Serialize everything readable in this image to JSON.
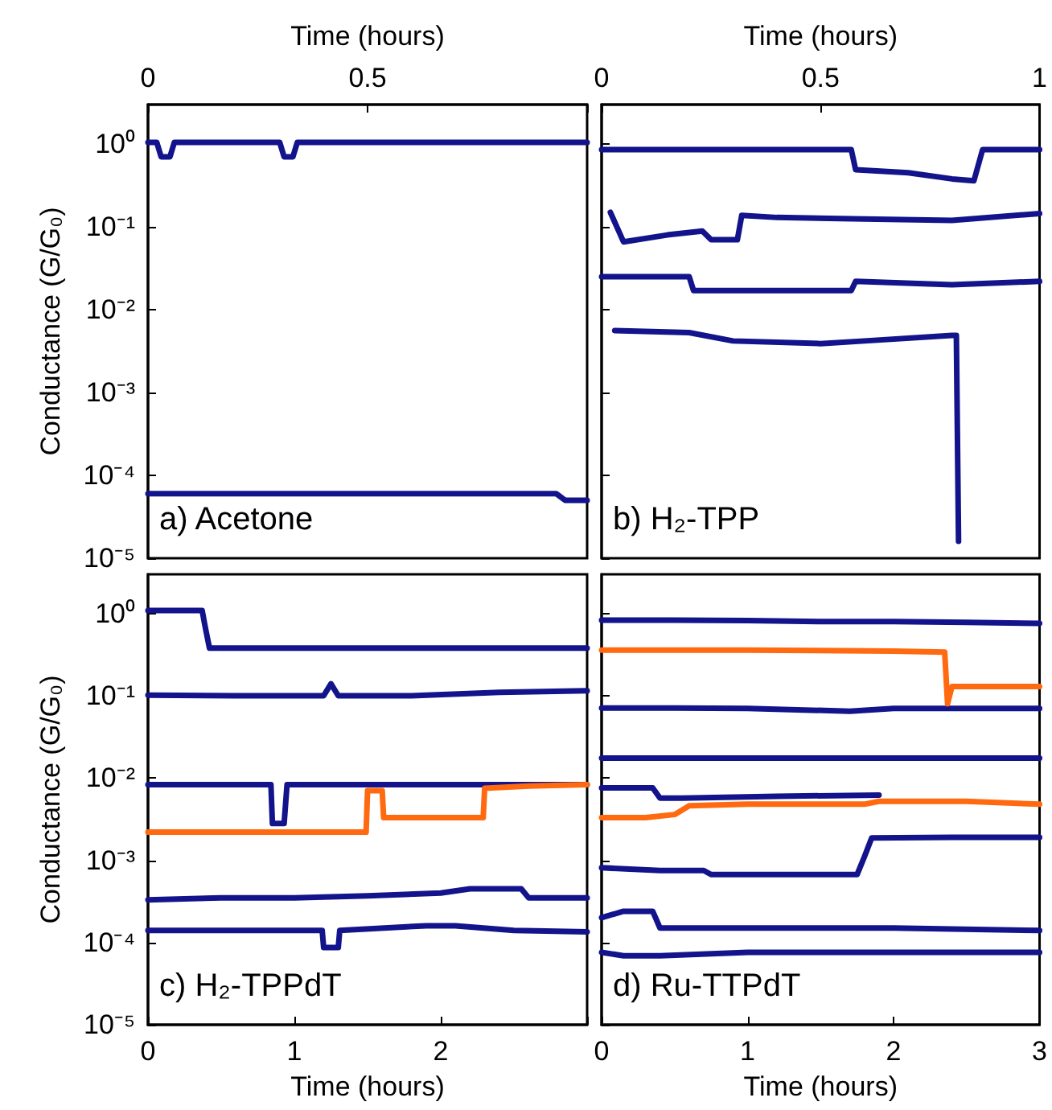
{
  "chart_data": [
    {
      "type": "line",
      "xlabel": "Time (hours)",
      "ylabel": "Conductance (G/G₀)",
      "xlim": [
        0,
        1
      ],
      "xticks": [
        0,
        0.5,
        {
          "value": 1,
          "label": null
        }
      ],
      "ylim": [
        1e-05,
        3
      ],
      "yticks": [
        {
          "value": 1,
          "label": "10⁰"
        },
        {
          "value": 0.1,
          "label": "10⁻¹"
        },
        {
          "value": 0.01,
          "label": "10⁻²"
        },
        {
          "value": 0.001,
          "label": "10⁻³"
        },
        {
          "value": 0.0001,
          "label": "10⁻⁴"
        },
        {
          "value": 1e-05,
          "label": "10⁻⁵"
        }
      ],
      "log": "y",
      "marker": "none",
      "line_style": "solid",
      "annotations": [
        "a) Acetone"
      ],
      "series": [
        {
          "color": "#13138c",
          "x": [
            0,
            0.02,
            0.03,
            0.05,
            0.06,
            0.3,
            0.31,
            0.33,
            0.34,
            0.6,
            1
          ],
          "values": [
            1.05,
            1.05,
            0.7,
            0.7,
            1.05,
            1.05,
            0.7,
            0.7,
            1.05,
            1.05,
            1.05
          ]
        },
        {
          "color": "#13138c",
          "x": [
            0,
            0.2,
            0.4,
            0.6,
            0.8,
            0.93,
            0.95,
            1
          ],
          "values": [
            6e-05,
            6e-05,
            6e-05,
            6e-05,
            6e-05,
            6e-05,
            5e-05,
            5e-05
          ]
        }
      ]
    },
    {
      "type": "line",
      "xlabel": "Time (hours)",
      "xlim": [
        0,
        1
      ],
      "xticks": [
        0,
        0.5,
        1
      ],
      "ylim": [
        1e-05,
        3
      ],
      "yticks": [
        1,
        0.1,
        0.01,
        0.001,
        0.0001,
        1e-05
      ],
      "log": "y",
      "tick_labels": "x",
      "marker": "none",
      "line_style": "solid",
      "annotations": [
        "b) H₂-TPP"
      ],
      "series": [
        {
          "color": "#13138c",
          "x": [
            0,
            0.3,
            0.57,
            0.58,
            0.7,
            0.8,
            0.85,
            0.87,
            1
          ],
          "values": [
            0.86,
            0.86,
            0.86,
            0.49,
            0.45,
            0.38,
            0.36,
            0.86,
            0.86
          ]
        },
        {
          "color": "#13138c",
          "x": [
            0.02,
            0.05,
            0.15,
            0.23,
            0.25,
            0.31,
            0.32,
            0.4,
            0.6,
            0.8,
            1
          ],
          "values": [
            0.15,
            0.066,
            0.08,
            0.089,
            0.07,
            0.07,
            0.138,
            0.13,
            0.125,
            0.12,
            0.145
          ]
        },
        {
          "color": "#13138c",
          "x": [
            0,
            0.2,
            0.21,
            0.4,
            0.57,
            0.58,
            0.8,
            1
          ],
          "values": [
            0.025,
            0.025,
            0.017,
            0.017,
            0.017,
            0.022,
            0.02,
            0.022
          ]
        },
        {
          "color": "#13138c",
          "x": [
            0.03,
            0.2,
            0.3,
            0.5,
            0.6,
            0.8,
            0.81,
            0.815
          ],
          "values": [
            0.0056,
            0.0053,
            0.0042,
            0.0039,
            0.0042,
            0.0049,
            0.0049,
            1.6e-05
          ]
        }
      ]
    },
    {
      "type": "line",
      "xlabel": "Time (hours)",
      "ylabel": "Conductance (G/G₀)",
      "xlim": [
        0,
        3
      ],
      "xticks": [
        0,
        1,
        2,
        {
          "value": 3,
          "label": null
        }
      ],
      "ylim": [
        1e-05,
        3
      ],
      "yticks": [
        {
          "value": 1,
          "label": "10⁰"
        },
        {
          "value": 0.1,
          "label": "10⁻¹"
        },
        {
          "value": 0.01,
          "label": "10⁻²"
        },
        {
          "value": 0.001,
          "label": "10⁻³"
        },
        {
          "value": 0.0001,
          "label": "10⁻⁴"
        },
        {
          "value": 1e-05,
          "label": "10⁻⁵"
        }
      ],
      "log": "y",
      "marker": "none",
      "line_style": "solid",
      "annotations": [
        "c) H₂-TPPdT"
      ],
      "series": [
        {
          "color": "#13138c",
          "x": [
            0,
            0.37,
            0.39,
            0.42,
            1,
            2,
            3
          ],
          "values": [
            1.09,
            1.09,
            0.7,
            0.38,
            0.38,
            0.38,
            0.38
          ]
        },
        {
          "color": "#13138c",
          "x": [
            0,
            0.6,
            1.2,
            1.25,
            1.3,
            1.8,
            2.4,
            3
          ],
          "values": [
            0.102,
            0.1,
            0.1,
            0.14,
            0.1,
            0.1,
            0.11,
            0.115
          ]
        },
        {
          "color": "#13138c",
          "x": [
            0,
            0.84,
            0.85,
            0.93,
            0.95,
            1.5,
            2,
            2.5,
            3
          ],
          "values": [
            0.0083,
            0.0083,
            0.0028,
            0.0028,
            0.0083,
            0.0083,
            0.0083,
            0.0083,
            0.0083
          ]
        },
        {
          "color": "#ff6a10",
          "x": [
            0,
            0.7,
            1.49,
            1.5,
            1.6,
            1.61,
            2,
            2.29,
            2.3,
            2.6,
            3
          ],
          "values": [
            0.0022,
            0.0022,
            0.0022,
            0.007,
            0.007,
            0.0033,
            0.0033,
            0.0033,
            0.0075,
            0.008,
            0.0083
          ]
        },
        {
          "color": "#13138c",
          "x": [
            0,
            0.5,
            1,
            1.5,
            2,
            2.2,
            2.4,
            2.55,
            2.6,
            3
          ],
          "values": [
            0.00033,
            0.00035,
            0.00035,
            0.00037,
            0.0004,
            0.00045,
            0.00045,
            0.00045,
            0.00035,
            0.00035
          ]
        },
        {
          "color": "#13138c",
          "x": [
            0,
            0.6,
            1.19,
            1.2,
            1.3,
            1.31,
            1.9,
            2.1,
            2.5,
            3
          ],
          "values": [
            0.00014,
            0.00014,
            0.00014,
            8.7e-05,
            8.7e-05,
            0.00014,
            0.00016,
            0.00016,
            0.00014,
            0.000135
          ]
        }
      ]
    },
    {
      "type": "line",
      "xlabel": "Time (hours)",
      "xlim": [
        0,
        3
      ],
      "xticks": [
        0,
        1,
        2,
        3
      ],
      "ylim": [
        1e-05,
        3
      ],
      "yticks": [
        1,
        0.1,
        0.01,
        0.001,
        0.0001,
        1e-05
      ],
      "log": "y",
      "tick_labels": "x",
      "marker": "none",
      "line_style": "solid",
      "annotations": [
        "d) Ru-TTPdT"
      ],
      "series": [
        {
          "color": "#13138c",
          "x": [
            0,
            0.5,
            1,
            1.5,
            2,
            2.5,
            3
          ],
          "values": [
            0.83,
            0.83,
            0.82,
            0.8,
            0.8,
            0.78,
            0.76
          ]
        },
        {
          "color": "#13138c",
          "x": [
            0,
            0.5,
            1,
            1.7,
            2,
            2.5,
            3
          ],
          "values": [
            0.071,
            0.071,
            0.07,
            0.065,
            0.07,
            0.07,
            0.07
          ]
        },
        {
          "color": "#13138c",
          "x": [
            0,
            1,
            2,
            3
          ],
          "values": [
            0.0175,
            0.0175,
            0.0175,
            0.0175
          ]
        },
        {
          "color": "#13138c",
          "x": [
            0,
            0.35,
            0.4,
            0.55,
            1.2,
            1.9
          ],
          "values": [
            0.0076,
            0.0076,
            0.0057,
            0.0057,
            0.006,
            0.0062
          ]
        },
        {
          "color": "#13138c",
          "x": [
            0,
            0.4,
            0.7,
            0.75,
            1.2,
            1.75,
            1.8,
            1.85,
            2.4,
            3
          ],
          "values": [
            0.00081,
            0.00075,
            0.00075,
            0.00067,
            0.00067,
            0.00067,
            0.0011,
            0.00187,
            0.0019,
            0.0019
          ]
        },
        {
          "color": "#13138c",
          "x": [
            0,
            0.15,
            0.35,
            0.4,
            1,
            2,
            3
          ],
          "values": [
            0.0002,
            0.00024,
            0.00024,
            0.00015,
            0.00015,
            0.00015,
            0.00014
          ]
        },
        {
          "color": "#13138c",
          "x": [
            0,
            0.15,
            0.4,
            1,
            2,
            3
          ],
          "values": [
            7.6e-05,
            6.9e-05,
            6.9e-05,
            7.6e-05,
            7.6e-05,
            7.6e-05
          ]
        },
        {
          "color": "#ff6a10",
          "x": [
            0,
            0.3,
            0.5,
            0.6,
            1,
            1.8,
            1.9,
            2.5,
            3
          ],
          "values": [
            0.0033,
            0.0033,
            0.0036,
            0.0046,
            0.0048,
            0.0048,
            0.0052,
            0.0052,
            0.0048
          ]
        },
        {
          "color": "#ff6a10",
          "x": [
            0,
            1,
            2,
            2.35,
            2.37,
            2.4,
            2.7,
            3
          ],
          "values": [
            0.36,
            0.36,
            0.35,
            0.34,
            0.08,
            0.13,
            0.13,
            0.13
          ]
        }
      ]
    }
  ]
}
